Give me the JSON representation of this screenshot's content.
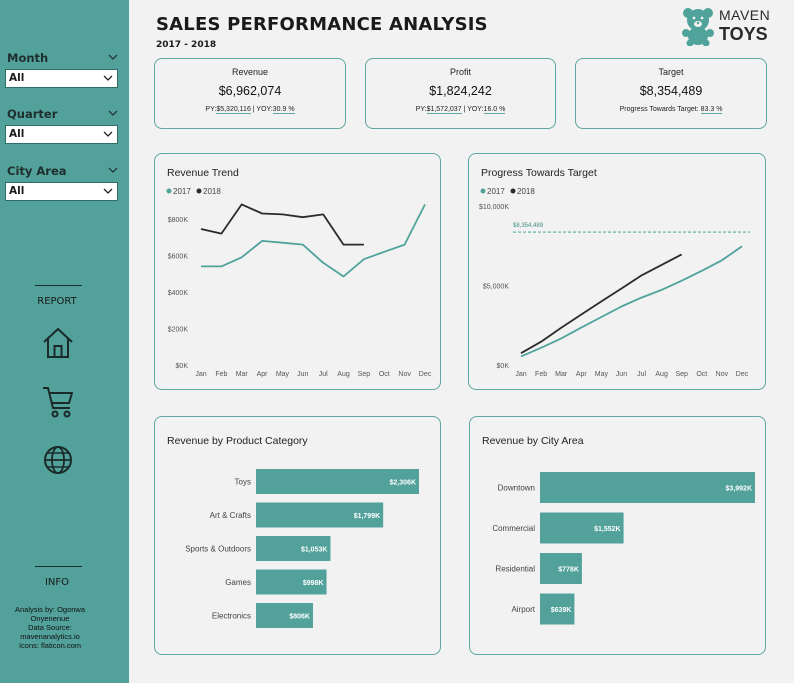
{
  "header": {
    "title": "SALES PERFORMANCE ANALYSIS",
    "subtitle": "2017 - 2018",
    "logo_line1": "MAVEN",
    "logo_line2": "TOYS"
  },
  "filters": [
    {
      "label": "Month",
      "value": "All"
    },
    {
      "label": "Quarter",
      "value": "All"
    },
    {
      "label": "City Area",
      "value": "All"
    }
  ],
  "sidebar": {
    "report_label": "REPORT",
    "info_label": "INFO",
    "credits": [
      "Analysis by: Ogonwa Onyenenue",
      "Data Source: mavenanalytics.io",
      "Icons: flaticon.com"
    ],
    "nav_icons": [
      "home-icon",
      "cart-icon",
      "globe-icon"
    ]
  },
  "kpis": {
    "revenue": {
      "label": "Revenue",
      "value": "$6,962,074",
      "py_prefix": "PY:",
      "py_value": "$5,320,116",
      "sep": " | YOY:",
      "yoy_value": "30.9 %"
    },
    "profit": {
      "label": "Profit",
      "value": "$1,824,242",
      "py_prefix": "PY:",
      "py_value": "$1,572,037",
      "sep": " | YOY:",
      "yoy_value": "16.0 %"
    },
    "target": {
      "label": "Target",
      "value": "$8,354,489",
      "progress_prefix": "Progress Towards Target: ",
      "progress_value": "83.3 %"
    }
  },
  "colors": {
    "sidebar": "#52a19a",
    "series_2017": "#4fa39b",
    "series_2018": "#2b2b2b",
    "bars": "#52a19a",
    "card_border": "#5fa7a1"
  },
  "chart_data": [
    {
      "id": "revenue_trend",
      "type": "line",
      "title": "Revenue Trend",
      "categories": [
        "Jan",
        "Feb",
        "Mar",
        "Apr",
        "May",
        "Jun",
        "Jul",
        "Aug",
        "Sep",
        "Oct",
        "Nov",
        "Dec"
      ],
      "y_ticks": [
        "$0K",
        "$200K",
        "$400K",
        "$600K",
        "$800K"
      ],
      "y_tick_values": [
        0,
        200,
        400,
        600,
        800
      ],
      "ylim": [
        0,
        800
      ],
      "series": [
        {
          "name": "2017",
          "color": "#4fa39b",
          "values": [
            540,
            540,
            590,
            680,
            670,
            660,
            560,
            485,
            580,
            620,
            660,
            880
          ]
        },
        {
          "name": "2018",
          "color": "#2b2b2b",
          "values": [
            745,
            720,
            880,
            830,
            825,
            810,
            825,
            660,
            660,
            null,
            null,
            null
          ]
        }
      ],
      "legend": "top-left"
    },
    {
      "id": "progress_towards_target",
      "type": "line",
      "title": "Progress Towards Target",
      "categories": [
        "Jan",
        "Feb",
        "Mar",
        "Apr",
        "May",
        "Jun",
        "Jul",
        "Aug",
        "Sep",
        "Oct",
        "Nov",
        "Dec"
      ],
      "y_ticks": [
        "$0K",
        "$5,000K",
        "$10,000K"
      ],
      "y_tick_values": [
        0,
        5000,
        10000
      ],
      "ylim": [
        0,
        10000
      ],
      "target_value": 8354,
      "target_label": "$8,354,489",
      "series": [
        {
          "name": "2017",
          "color": "#4fa39b",
          "values": [
            540,
            1080,
            1670,
            2350,
            3020,
            3680,
            4240,
            4725,
            5305,
            5925,
            6585,
            7465
          ]
        },
        {
          "name": "2018",
          "color": "#2b2b2b",
          "values": [
            745,
            1465,
            2345,
            3175,
            4000,
            4810,
            5635,
            6295,
            6955,
            null,
            null,
            null
          ]
        }
      ],
      "legend": "top-left"
    },
    {
      "id": "revenue_by_category",
      "type": "bar",
      "orientation": "horizontal",
      "title": "Revenue by Product Category",
      "categories": [
        "Toys",
        "Art & Crafts",
        "Sports & Outdoors",
        "Games",
        "Electronics"
      ],
      "values": [
        2306,
        1799,
        1053,
        998,
        806
      ],
      "labels": [
        "$2,306K",
        "$1,799K",
        "$1,053K",
        "$998K",
        "$806K"
      ],
      "max": 2306
    },
    {
      "id": "revenue_by_city_area",
      "type": "bar",
      "orientation": "horizontal",
      "title": "Revenue by City Area",
      "categories": [
        "Downtown",
        "Commercial",
        "Residential",
        "Airport"
      ],
      "values": [
        3992,
        1552,
        778,
        639
      ],
      "labels": [
        "$3,992K",
        "$1,552K",
        "$778K",
        "$639K"
      ],
      "max": 3992
    }
  ]
}
